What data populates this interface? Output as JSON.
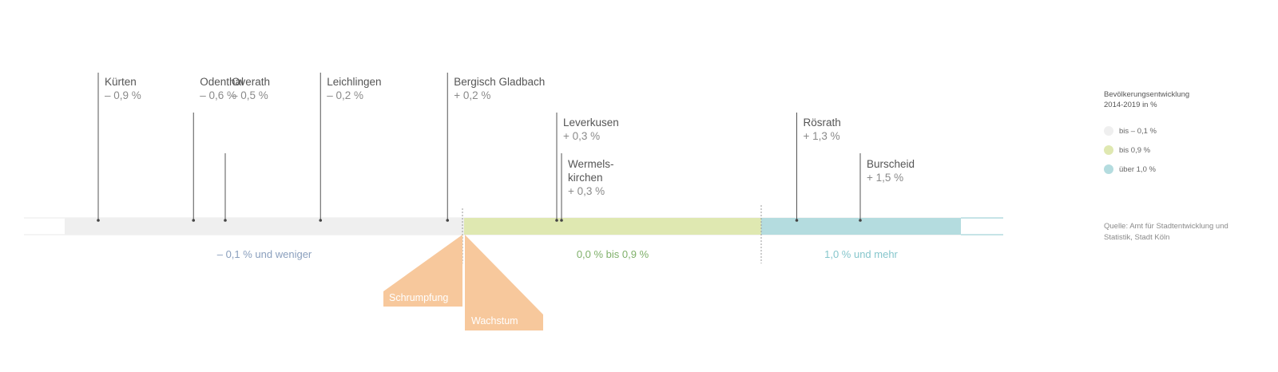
{
  "chart_data": {
    "type": "dot-strip",
    "title": "",
    "categories": [
      {
        "name": "Kürten",
        "label": "– 0,9 %",
        "value": -0.9
      },
      {
        "name": "Odenthal",
        "label": "– 0,6 %",
        "value": -0.6
      },
      {
        "name": "Overath",
        "label": "– 0,5 %",
        "value": -0.5
      },
      {
        "name": "Leichlingen",
        "label": "– 0,2 %",
        "value": -0.2
      },
      {
        "name": "Bergisch Gladbach",
        "label": "+ 0,2 %",
        "value": 0.2
      },
      {
        "name": "Leverkusen",
        "label": "+ 0,3 %",
        "value": 0.3
      },
      {
        "name": "Wermels-\nkirchen",
        "label": "+ 0,3 %",
        "value": 0.3
      },
      {
        "name": "Rösrath",
        "label": "+ 1,3 %",
        "value": 1.3
      },
      {
        "name": "Burscheid",
        "label": "+ 1,5 %",
        "value": 1.5
      }
    ],
    "ranges": [
      {
        "label": "– 0,1 % und weniger",
        "from": -1.2,
        "to": -0.1,
        "color": "#efefef",
        "text_color": "#8a9fbd"
      },
      {
        "label": "0,0 % bis 0,9 %",
        "from": -0.1,
        "to": 0.95,
        "color": "#dfe8b1",
        "text_color": "#7fb06a"
      },
      {
        "label": "1,0 % und mehr",
        "from": 0.95,
        "to": 1.85,
        "color": "#b4dcdf",
        "text_color": "#86c6cc"
      }
    ],
    "thresholds": [
      -0.1,
      0.95
    ],
    "xlim": [
      -1.2,
      1.85
    ],
    "arrows": {
      "shrink": "Schrumpfung",
      "grow": "Wachstum",
      "color": "#f7c89c"
    },
    "legend": {
      "title": "Bevölkerungsentwicklung\n2014-2019 in %",
      "items": [
        {
          "label": "bis – 0,1 %",
          "color": "#efefef"
        },
        {
          "label": "bis 0,9 %",
          "color": "#dfe8b1"
        },
        {
          "label": "über 1,0 %",
          "color": "#b4dcdf"
        }
      ]
    },
    "source": "Quelle: Amt für Stadtentwicklung und\nStatistik, Stadt Köln"
  }
}
